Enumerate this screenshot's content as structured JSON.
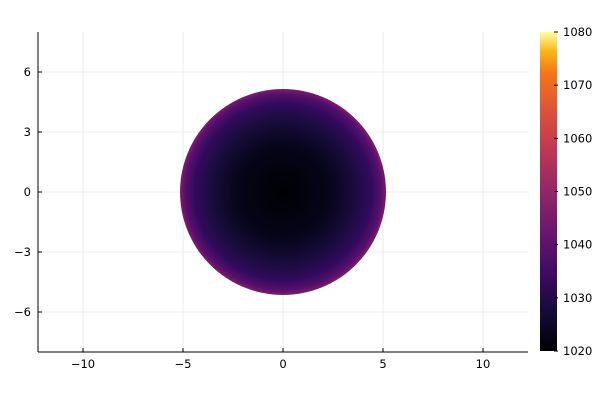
{
  "chart_data": {
    "type": "heatmap",
    "title": "",
    "xlabel": "",
    "ylabel": "",
    "xlim": [
      -12.25,
      12.25
    ],
    "ylim": [
      -8,
      8
    ],
    "xticks": [
      -10,
      -5,
      0,
      5,
      10
    ],
    "xtick_labels": [
      "−10",
      "−5",
      "0",
      "5",
      "10"
    ],
    "yticks": [
      -6,
      -3,
      0,
      3,
      6
    ],
    "ytick_labels": [
      "−6",
      "−3",
      "0",
      "3",
      "6"
    ],
    "grid": true,
    "colormap": "inferno",
    "colorbar": {
      "range": [
        1020,
        1080
      ],
      "ticks": [
        1020,
        1030,
        1040,
        1050,
        1060,
        1070,
        1080
      ],
      "tick_labels": [
        "1020",
        "1030",
        "1040",
        "1050",
        "1060",
        "1070",
        "1080"
      ]
    },
    "field": {
      "shape": "disk",
      "center": [
        0,
        0
      ],
      "radius": 5.15,
      "value_at_center": 1020,
      "value_at_edge": 1045
    }
  }
}
